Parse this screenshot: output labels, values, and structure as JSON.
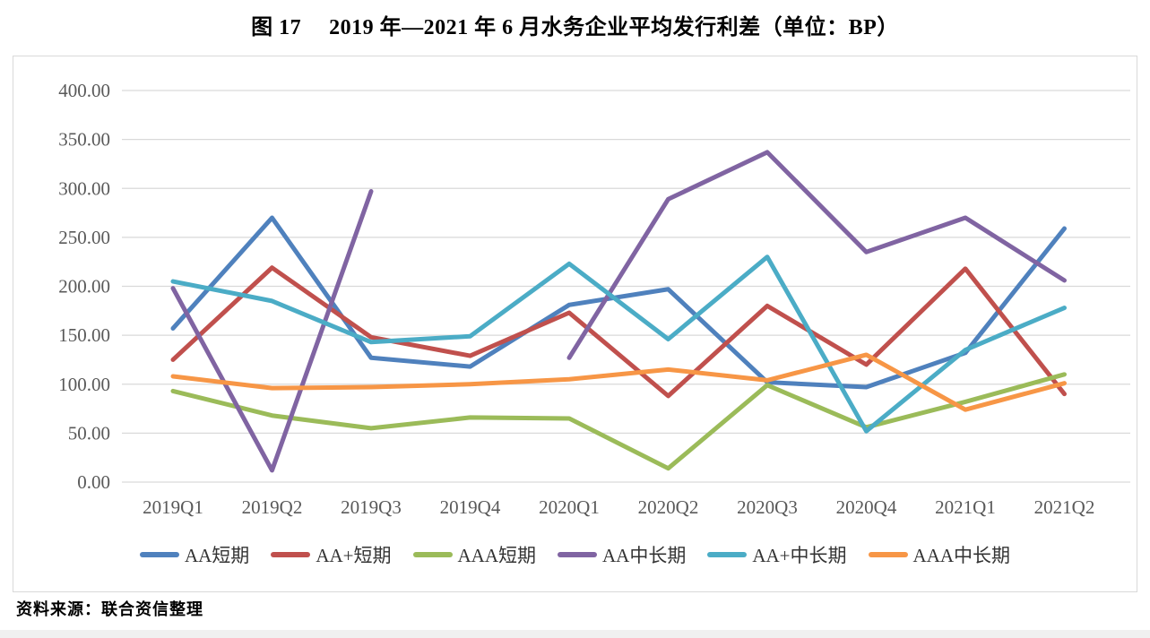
{
  "title": "图 17　 2019 年—2021 年 6 月水务企业平均发行利差（单位：BP）",
  "source_note": "资料来源：联合资信整理",
  "chart_data": {
    "type": "line",
    "title": "图 17　 2019 年—2021 年 6 月水务企业平均发行利差（单位：BP）",
    "unit": "BP",
    "categories": [
      "2019Q1",
      "2019Q2",
      "2019Q3",
      "2019Q4",
      "2020Q1",
      "2020Q2",
      "2020Q3",
      "2020Q4",
      "2021Q1",
      "2021Q2"
    ],
    "series": [
      {
        "name": "AA短期",
        "color": "#4F81BD",
        "values": [
          157,
          270,
          127,
          118,
          181,
          197,
          102,
          97,
          132,
          259
        ]
      },
      {
        "name": "AA+短期",
        "color": "#C0504D",
        "values": [
          125,
          219,
          148,
          129,
          173,
          88,
          180,
          120,
          218,
          90
        ]
      },
      {
        "name": "AAA短期",
        "color": "#9BBB59",
        "values": [
          93,
          68,
          55,
          66,
          65,
          14,
          99,
          56,
          82,
          110
        ]
      },
      {
        "name": "AA中长期",
        "color": "#8064A2",
        "values": [
          198,
          12,
          297,
          null,
          127,
          289,
          337,
          235,
          270,
          206
        ]
      },
      {
        "name": "AA+中长期",
        "color": "#4BACC6",
        "values": [
          205,
          185,
          143,
          149,
          223,
          146,
          230,
          52,
          135,
          178
        ]
      },
      {
        "name": "AAA中长期",
        "color": "#F79646",
        "values": [
          108,
          96,
          97,
          100,
          105,
          115,
          104,
          130,
          74,
          101
        ]
      }
    ],
    "ylim": [
      0,
      400
    ],
    "ytick_step": 50,
    "ytick_labels": [
      "0.00",
      "50.00",
      "100.00",
      "150.00",
      "200.00",
      "250.00",
      "300.00",
      "350.00",
      "400.00"
    ],
    "grid": true,
    "legend_position": "bottom",
    "line_width": 5,
    "grid_color": "#D9D9D9",
    "axis_label_color": "#595959"
  }
}
